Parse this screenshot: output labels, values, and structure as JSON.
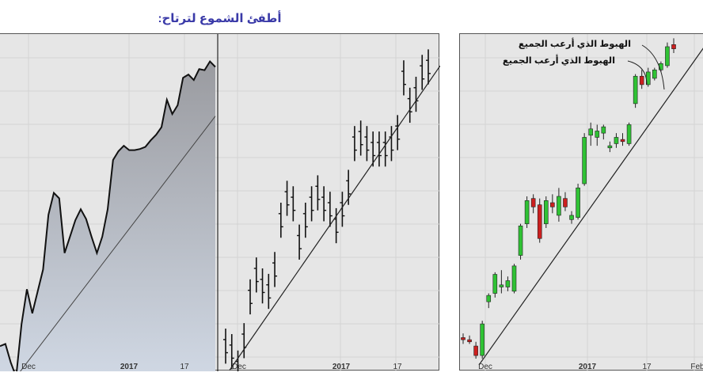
{
  "title": "أطفئ الشموع لترتاح:",
  "chart_data": [
    {
      "type": "area",
      "x_ticks": [
        "Dec",
        "2017",
        "17"
      ],
      "values": [
        33.0,
        33.2,
        31.5,
        30.2,
        35.0,
        38.2,
        36.0,
        38.0,
        40.0,
        45.0,
        47.0,
        46.5,
        41.5,
        43.0,
        44.5,
        45.5,
        44.6,
        43.0,
        41.5,
        43.0,
        45.5,
        50.0,
        50.8,
        51.3,
        50.9,
        50.9,
        51.0,
        51.2,
        51.8,
        52.3,
        53.0,
        55.5,
        54.2,
        55.0,
        57.5,
        57.8,
        57.3,
        58.3,
        58.2,
        59.0,
        58.5
      ]
    },
    {
      "type": "bar",
      "x_ticks": [
        "Dec",
        "2017",
        "17"
      ],
      "values": [
        33.0,
        32.5,
        31.0,
        33.5,
        37.5,
        39.5,
        38.5,
        38.0,
        40.0,
        44.5,
        46.5,
        46.0,
        42.5,
        44.5,
        46.0,
        47.0,
        46.0,
        45.5,
        44.0,
        45.5,
        47.5,
        51.5,
        52.0,
        51.5,
        51.0,
        51.0,
        51.0,
        51.5,
        52.5,
        57.5,
        55.0,
        56.0,
        58.0,
        58.5
      ]
    },
    {
      "type": "candlestick",
      "x_ticks": [
        "Dec",
        "2017",
        "17",
        "Feb"
      ],
      "annotations": [
        "الهبوط الذي أرعب الجميع",
        "الهبوط الذي أرعب الجميع"
      ],
      "ohlc": [
        [
          33.2,
          33.6,
          32.6,
          33.0
        ],
        [
          33.0,
          33.4,
          32.6,
          32.8
        ],
        [
          32.4,
          32.8,
          31.2,
          31.5
        ],
        [
          31.5,
          34.8,
          31.2,
          34.5
        ],
        [
          36.6,
          37.4,
          36.0,
          37.2
        ],
        [
          37.4,
          39.4,
          37.0,
          39.2
        ],
        [
          38.0,
          39.6,
          37.4,
          38.2
        ],
        [
          38.0,
          39.0,
          37.6,
          38.6
        ],
        [
          37.6,
          40.2,
          37.4,
          40.0
        ],
        [
          41.0,
          44.0,
          40.6,
          43.8
        ],
        [
          44.0,
          46.6,
          43.6,
          46.2
        ],
        [
          46.4,
          46.8,
          45.0,
          45.6
        ],
        [
          45.8,
          46.4,
          42.2,
          42.6
        ],
        [
          44.0,
          46.6,
          43.6,
          46.2
        ],
        [
          46.0,
          46.8,
          45.0,
          45.6
        ],
        [
          44.8,
          47.4,
          44.2,
          46.6
        ],
        [
          46.4,
          47.0,
          45.2,
          45.6
        ],
        [
          44.4,
          45.2,
          44.0,
          44.8
        ],
        [
          44.6,
          47.8,
          44.4,
          47.4
        ],
        [
          47.8,
          52.6,
          47.6,
          52.2
        ],
        [
          52.4,
          53.6,
          51.4,
          53.0
        ],
        [
          52.2,
          53.4,
          51.4,
          52.8
        ],
        [
          52.6,
          53.4,
          52.0,
          53.2
        ],
        [
          51.2,
          51.8,
          50.8,
          51.4
        ],
        [
          51.6,
          52.6,
          51.2,
          52.2
        ],
        [
          52.0,
          52.6,
          51.4,
          51.8
        ],
        [
          51.6,
          53.6,
          51.4,
          53.4
        ],
        [
          55.4,
          58.2,
          55.0,
          58.0
        ],
        [
          58.0,
          58.6,
          56.8,
          57.2
        ],
        [
          57.2,
          58.8,
          57.0,
          58.4
        ],
        [
          57.8,
          58.8,
          57.6,
          58.6
        ],
        [
          58.6,
          59.4,
          58.4,
          59.2
        ],
        [
          59.0,
          61.2,
          58.8,
          60.8
        ],
        [
          61.0,
          61.6,
          60.2,
          60.6
        ]
      ]
    }
  ]
}
